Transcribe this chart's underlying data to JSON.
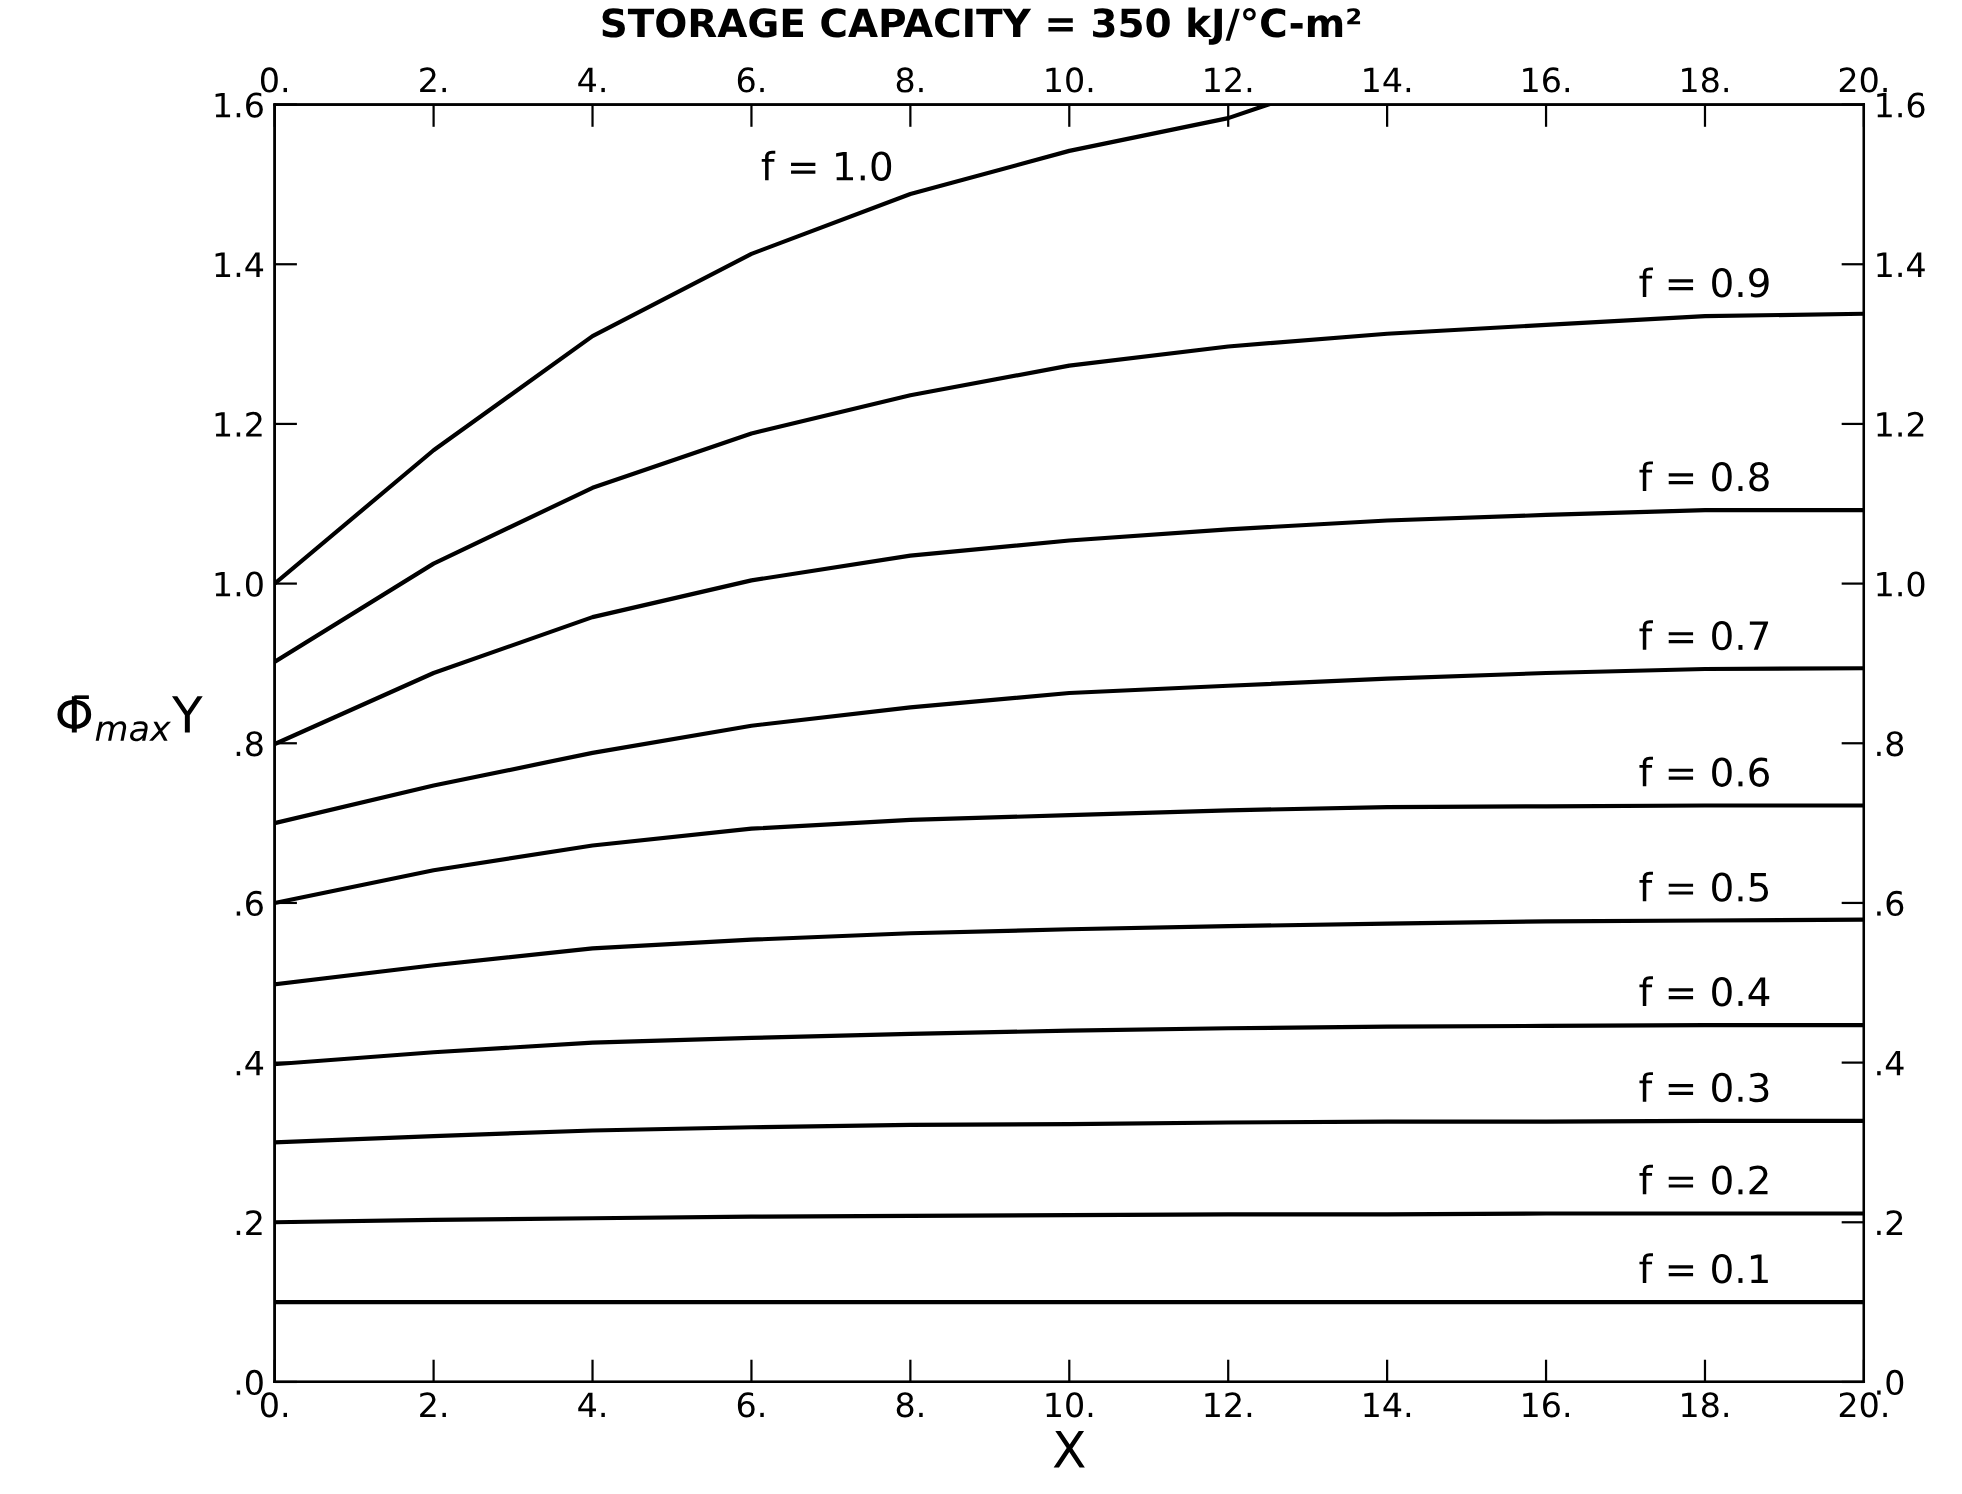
{
  "chart_data": {
    "type": "line",
    "title": "STORAGE CAPACITY = 350 kJ/°C-m²",
    "xlabel": "X",
    "ylabel": "Φ̄$_{max}$Y",
    "x": [
      0,
      2,
      4,
      6,
      8,
      10,
      12,
      14,
      16,
      18,
      20
    ],
    "series": [
      {
        "name": "f = 1.0",
        "color": "#000000",
        "x": [
          0,
          2,
          4,
          6,
          8,
          10,
          12,
          12.5
        ],
        "values": [
          1.0,
          1.167,
          1.31,
          1.413,
          1.488,
          1.542,
          1.583,
          1.6
        ]
      },
      {
        "name": "f = 0.9",
        "color": "#000000",
        "values": [
          0.902,
          1.025,
          1.12,
          1.188,
          1.236,
          1.273,
          1.297,
          1.313,
          1.324,
          1.335,
          1.338
        ]
      },
      {
        "name": "f = 0.8",
        "color": "#000000",
        "values": [
          0.799,
          0.888,
          0.958,
          1.004,
          1.035,
          1.054,
          1.068,
          1.079,
          1.086,
          1.092,
          1.092
        ]
      },
      {
        "name": "f = 0.7",
        "color": "#000000",
        "values": [
          0.7,
          0.747,
          0.788,
          0.822,
          0.845,
          0.863,
          0.872,
          0.881,
          0.888,
          0.893,
          0.894
        ]
      },
      {
        "name": "f = 0.6",
        "color": "#000000",
        "values": [
          0.6,
          0.641,
          0.672,
          0.693,
          0.704,
          0.71,
          0.716,
          0.72,
          0.721,
          0.722,
          0.722
        ]
      },
      {
        "name": "f = 0.5",
        "color": "#000000",
        "values": [
          0.498,
          0.522,
          0.543,
          0.554,
          0.562,
          0.567,
          0.571,
          0.574,
          0.577,
          0.578,
          0.579
        ]
      },
      {
        "name": "f = 0.4",
        "color": "#000000",
        "values": [
          0.398,
          0.413,
          0.425,
          0.431,
          0.436,
          0.44,
          0.443,
          0.445,
          0.446,
          0.447,
          0.447
        ]
      },
      {
        "name": "f = 0.3",
        "color": "#000000",
        "values": [
          0.3,
          0.308,
          0.315,
          0.319,
          0.322,
          0.323,
          0.325,
          0.326,
          0.326,
          0.327,
          0.327
        ]
      },
      {
        "name": "f = 0.2",
        "color": "#000000",
        "values": [
          0.2,
          0.203,
          0.205,
          0.207,
          0.208,
          0.209,
          0.21,
          0.21,
          0.211,
          0.211,
          0.211
        ]
      },
      {
        "name": "f = 0.1",
        "color": "#000000",
        "values": [
          0.1,
          0.1,
          0.1,
          0.1,
          0.1,
          0.1,
          0.1,
          0.1,
          0.1,
          0.1,
          0.1
        ]
      }
    ],
    "xlim": [
      0,
      20
    ],
    "xticks": [
      {
        "value": 0,
        "label": "0."
      },
      {
        "value": 2,
        "label": "2."
      },
      {
        "value": 4,
        "label": "4."
      },
      {
        "value": 6,
        "label": "6."
      },
      {
        "value": 8,
        "label": "8."
      },
      {
        "value": 10,
        "label": "10."
      },
      {
        "value": 12,
        "label": "12."
      },
      {
        "value": 14,
        "label": "14."
      },
      {
        "value": 16,
        "label": "16."
      },
      {
        "value": 18,
        "label": "18."
      },
      {
        "value": 20,
        "label": "20."
      }
    ],
    "x2lim": [
      0,
      20
    ],
    "x2ticks": [
      {
        "value": 0,
        "label": "0."
      },
      {
        "value": 2,
        "label": "2."
      },
      {
        "value": 4,
        "label": "4."
      },
      {
        "value": 6,
        "label": "6."
      },
      {
        "value": 8,
        "label": "8."
      },
      {
        "value": 10,
        "label": "10."
      },
      {
        "value": 12,
        "label": "12."
      },
      {
        "value": 14,
        "label": "14."
      },
      {
        "value": 16,
        "label": "16."
      },
      {
        "value": 18,
        "label": "18."
      },
      {
        "value": 20,
        "label": "20."
      }
    ],
    "ylim": [
      0,
      1.6
    ],
    "yticks": [
      {
        "value": 0,
        "label": ".0"
      },
      {
        "value": 0.2,
        "label": ".2"
      },
      {
        "value": 0.4,
        "label": ".4"
      },
      {
        "value": 0.6,
        "label": ".6"
      },
      {
        "value": 0.8,
        "label": ".8"
      },
      {
        "value": 1.0,
        "label": "1.0"
      },
      {
        "value": 1.2,
        "label": "1.2"
      },
      {
        "value": 1.4,
        "label": "1.4"
      },
      {
        "value": 1.6,
        "label": "1.6"
      }
    ],
    "y2lim": [
      0,
      1.6
    ],
    "y2ticks": [
      {
        "value": 0,
        "label": ".0"
      },
      {
        "value": 0.2,
        "label": ".2"
      },
      {
        "value": 0.4,
        "label": ".4"
      },
      {
        "value": 0.6,
        "label": ".6"
      },
      {
        "value": 0.8,
        "label": ".8"
      },
      {
        "value": 1.0,
        "label": "1.0"
      },
      {
        "value": 1.2,
        "label": "1.2"
      },
      {
        "value": 1.4,
        "label": "1.4"
      },
      {
        "value": 1.6,
        "label": "1.6"
      }
    ],
    "grid": false,
    "legend": "right",
    "marker": "none",
    "line_style": "solid"
  }
}
